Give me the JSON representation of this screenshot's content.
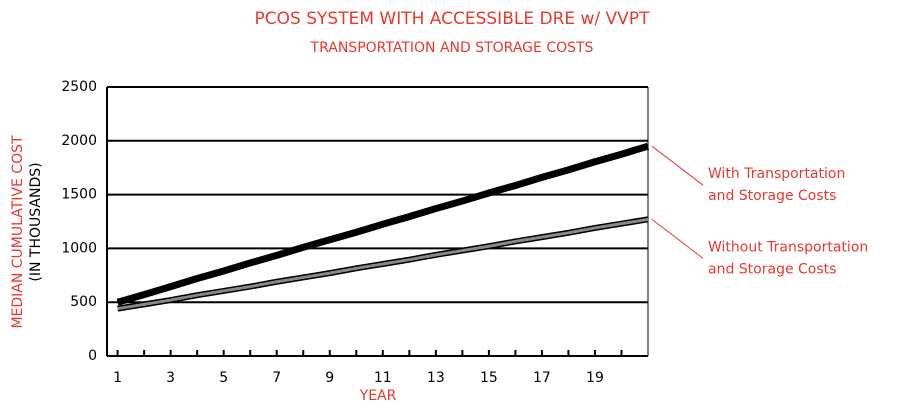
{
  "chart_data": {
    "type": "line",
    "title": "PCOS SYSTEM WITH ACCESSIBLE DRE w/ VVPT",
    "subtitle": "TRANSPORTATION AND STORAGE COSTS",
    "y_label_lines": [
      "MEDIAN CUMULATIVE COST",
      "(IN THOUSANDS)"
    ],
    "x_label": "YEAR",
    "x": [
      1,
      2,
      3,
      4,
      5,
      6,
      7,
      8,
      9,
      10,
      11,
      12,
      13,
      14,
      15,
      16,
      17,
      18,
      19,
      20,
      21
    ],
    "series": [
      {
        "label_lines": [
          "With Transportation",
          "and Storage Costs"
        ],
        "color": "#000000",
        "values": [
          500,
          570,
          645,
          720,
          790,
          865,
          935,
          1010,
          1080,
          1150,
          1225,
          1295,
          1370,
          1440,
          1515,
          1585,
          1660,
          1730,
          1805,
          1875,
          1950
        ]
      },
      {
        "label_lines": [
          "Without Transportation",
          "and Storage Costs"
        ],
        "color": "#888888",
        "values": [
          440,
          480,
          520,
          565,
          605,
          645,
          690,
          730,
          770,
          815,
          855,
          895,
          940,
          980,
          1020,
          1065,
          1105,
          1145,
          1190,
          1230,
          1270
        ]
      }
    ],
    "xlim": [
      0.6,
      21
    ],
    "xticks": [
      1,
      3,
      5,
      7,
      9,
      11,
      13,
      15,
      17,
      19
    ],
    "xminor_ticks": [
      2,
      4,
      6,
      8,
      10,
      12,
      14,
      16,
      18,
      20
    ],
    "ylim": [
      0,
      2500
    ],
    "yticks": [
      0,
      500,
      1000,
      1500,
      2000,
      2500
    ],
    "grid": true
  }
}
